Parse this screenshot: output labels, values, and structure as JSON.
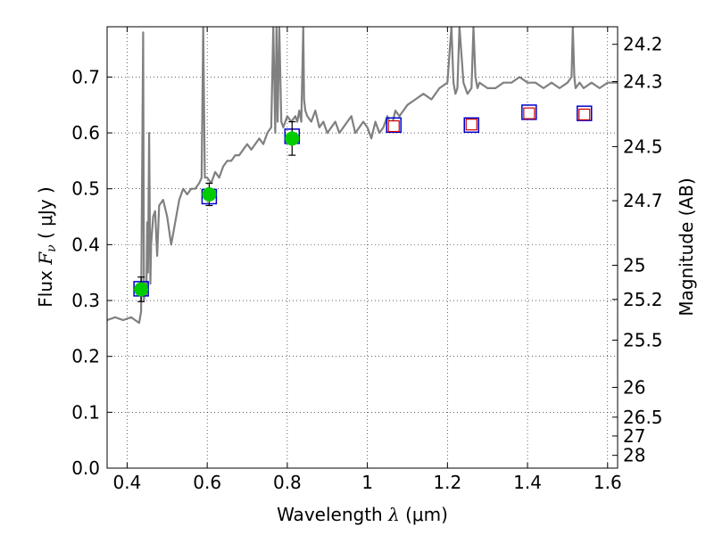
{
  "chart_data": {
    "type": "line",
    "title": "",
    "xlabel": "Wavelength  λ (μm)",
    "xlabel_parts": {
      "prefix": "Wavelength  ",
      "symbol": "λ",
      "suffix": " (μm)"
    },
    "ylabel": "Flux  Fν  ( μJy )",
    "ylabel_parts": {
      "prefix": "Flux  ",
      "symbol": "F",
      "subscript": "ν",
      "suffix": "  ( μJy )"
    },
    "y2label": "Magnitude (AB)",
    "xlim": [
      0.35,
      1.625
    ],
    "ylim": [
      0.0,
      0.79
    ],
    "grid": true,
    "grid_style": "dotted",
    "x_ticks": [
      {
        "value": 0.4,
        "label": "0.4"
      },
      {
        "value": 0.6,
        "label": "0.6"
      },
      {
        "value": 0.8,
        "label": "0.8"
      },
      {
        "value": 1.0,
        "label": "1"
      },
      {
        "value": 1.2,
        "label": "1.2"
      },
      {
        "value": 1.4,
        "label": "1.4"
      },
      {
        "value": 1.6,
        "label": "1.6"
      }
    ],
    "y_ticks": [
      {
        "value": 0.0,
        "label": "0.0"
      },
      {
        "value": 0.1,
        "label": "0.1"
      },
      {
        "value": 0.2,
        "label": "0.2"
      },
      {
        "value": 0.3,
        "label": "0.3"
      },
      {
        "value": 0.4,
        "label": "0.4"
      },
      {
        "value": 0.5,
        "label": "0.5"
      },
      {
        "value": 0.6,
        "label": "0.6"
      },
      {
        "value": 0.7,
        "label": "0.7"
      }
    ],
    "mag_ticks": [
      {
        "value": 24.2,
        "label": "24.2"
      },
      {
        "value": 24.3,
        "label": "24.3"
      },
      {
        "value": 24.5,
        "label": "24.5"
      },
      {
        "value": 24.7,
        "label": "24.7"
      },
      {
        "value": 25,
        "label": "25"
      },
      {
        "value": 25.2,
        "label": "25.2"
      },
      {
        "value": 25.5,
        "label": "25.5"
      },
      {
        "value": 26,
        "label": "26"
      },
      {
        "value": 26.5,
        "label": "26.5"
      },
      {
        "value": 27,
        "label": "27"
      },
      {
        "value": 28,
        "label": "28"
      }
    ],
    "magnitude_zero_point_uJy": 23.9,
    "series": [
      {
        "kind": "model_spectrum",
        "color": "#808080",
        "x": [
          0.35,
          0.37,
          0.39,
          0.41,
          0.42,
          0.43,
          0.435,
          0.44,
          0.442,
          0.445,
          0.448,
          0.45,
          0.452,
          0.455,
          0.458,
          0.46,
          0.465,
          0.47,
          0.475,
          0.48,
          0.49,
          0.5,
          0.51,
          0.52,
          0.53,
          0.54,
          0.55,
          0.56,
          0.57,
          0.58,
          0.586,
          0.59,
          0.594,
          0.6,
          0.61,
          0.62,
          0.63,
          0.64,
          0.65,
          0.66,
          0.67,
          0.68,
          0.69,
          0.7,
          0.71,
          0.72,
          0.73,
          0.74,
          0.75,
          0.76,
          0.765,
          0.77,
          0.773,
          0.776,
          0.78,
          0.785,
          0.79,
          0.8,
          0.81,
          0.82,
          0.825,
          0.83,
          0.835,
          0.84,
          0.842,
          0.845,
          0.85,
          0.86,
          0.87,
          0.88,
          0.89,
          0.9,
          0.91,
          0.92,
          0.93,
          0.94,
          0.95,
          0.96,
          0.97,
          0.98,
          0.99,
          1.0,
          1.01,
          1.02,
          1.03,
          1.04,
          1.05,
          1.06,
          1.07,
          1.08,
          1.09,
          1.1,
          1.12,
          1.14,
          1.16,
          1.18,
          1.2,
          1.21,
          1.215,
          1.22,
          1.225,
          1.23,
          1.24,
          1.25,
          1.26,
          1.265,
          1.27,
          1.275,
          1.28,
          1.3,
          1.32,
          1.34,
          1.36,
          1.38,
          1.4,
          1.42,
          1.44,
          1.46,
          1.48,
          1.5,
          1.51,
          1.513,
          1.517,
          1.52,
          1.53,
          1.54,
          1.56,
          1.58,
          1.6,
          1.625
        ],
        "y": [
          0.265,
          0.27,
          0.265,
          0.27,
          0.265,
          0.26,
          0.28,
          0.78,
          0.3,
          0.33,
          0.31,
          0.44,
          0.35,
          0.6,
          0.33,
          0.4,
          0.45,
          0.46,
          0.38,
          0.47,
          0.48,
          0.45,
          0.4,
          0.44,
          0.48,
          0.5,
          0.49,
          0.5,
          0.5,
          0.51,
          0.52,
          0.79,
          0.52,
          0.52,
          0.51,
          0.53,
          0.52,
          0.54,
          0.55,
          0.55,
          0.56,
          0.56,
          0.57,
          0.58,
          0.57,
          0.58,
          0.59,
          0.58,
          0.6,
          0.61,
          0.79,
          0.6,
          0.79,
          0.62,
          0.79,
          0.62,
          0.61,
          0.63,
          0.62,
          0.63,
          0.62,
          0.64,
          0.62,
          0.79,
          0.66,
          0.64,
          0.63,
          0.62,
          0.64,
          0.61,
          0.62,
          0.6,
          0.61,
          0.62,
          0.6,
          0.61,
          0.62,
          0.63,
          0.6,
          0.61,
          0.62,
          0.61,
          0.59,
          0.62,
          0.6,
          0.61,
          0.63,
          0.61,
          0.64,
          0.63,
          0.64,
          0.65,
          0.66,
          0.67,
          0.66,
          0.68,
          0.69,
          0.79,
          0.69,
          0.67,
          0.68,
          0.79,
          0.69,
          0.67,
          0.68,
          0.79,
          0.7,
          0.68,
          0.69,
          0.68,
          0.68,
          0.69,
          0.69,
          0.7,
          0.69,
          0.69,
          0.68,
          0.69,
          0.68,
          0.69,
          0.7,
          0.79,
          0.7,
          0.68,
          0.69,
          0.68,
          0.69,
          0.68,
          0.69,
          0.69
        ]
      },
      {
        "kind": "model_photometry",
        "marker": "square",
        "edgecolor": "#0000cc",
        "x": [
          0.435,
          0.605,
          0.812,
          1.066,
          1.26,
          1.404,
          1.542
        ],
        "y": [
          0.321,
          0.486,
          0.594,
          0.614,
          0.614,
          0.637,
          0.635
        ]
      },
      {
        "kind": "observed_photometry",
        "marker": "circle",
        "color": "#00cc00",
        "x": [
          0.435,
          0.605,
          0.812
        ],
        "y": [
          0.32,
          0.49,
          0.59
        ],
        "yerr": [
          0.022,
          0.02,
          0.03
        ]
      },
      {
        "kind": "upper_limits",
        "marker": "open-square",
        "edgecolor": "#cc0000",
        "x": [
          1.066,
          1.26,
          1.404,
          1.542
        ],
        "y": [
          0.612,
          0.615,
          0.635,
          0.633
        ]
      }
    ]
  }
}
